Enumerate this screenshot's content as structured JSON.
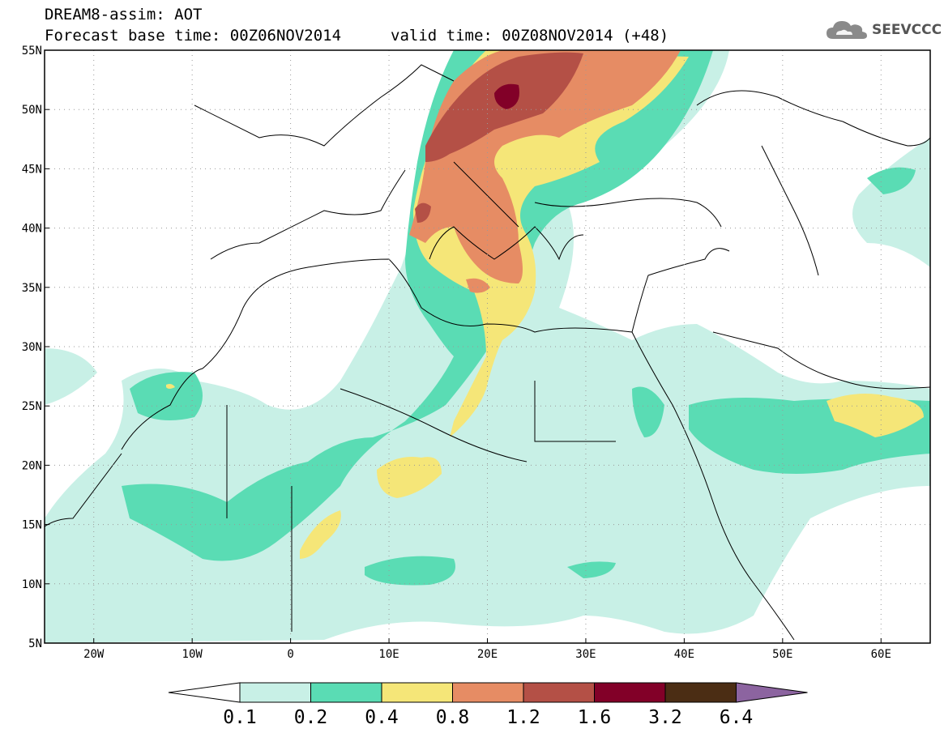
{
  "title": {
    "line1": "DREAM8-assim: AOT",
    "line2": "Forecast base time: 00Z06NOV2014",
    "valid": "valid time: 00Z08NOV2014 (+48)"
  },
  "logo": {
    "text": "SEEVCCC",
    "icon": "cloud-icon"
  },
  "map": {
    "lat_labels": [
      "55N",
      "50N",
      "45N",
      "40N",
      "35N",
      "30N",
      "25N",
      "20N",
      "15N",
      "10N",
      "5N"
    ],
    "lon_labels": [
      "20W",
      "10W",
      "0",
      "10E",
      "20E",
      "30E",
      "40E",
      "50E",
      "60E"
    ],
    "lon_range": [
      -25,
      65
    ],
    "lat_range": [
      5,
      55
    ],
    "grid": "dotted"
  },
  "colorbar": {
    "labels": [
      "0.1",
      "0.2",
      "0.4",
      "0.8",
      "1.2",
      "1.6",
      "3.2",
      "6.4"
    ],
    "colors": [
      "#ffffff",
      "#c8f0e6",
      "#5adcb4",
      "#f5e678",
      "#e68c64",
      "#b45046",
      "#820028",
      "#4b2d14",
      "#8c64a0"
    ]
  }
}
